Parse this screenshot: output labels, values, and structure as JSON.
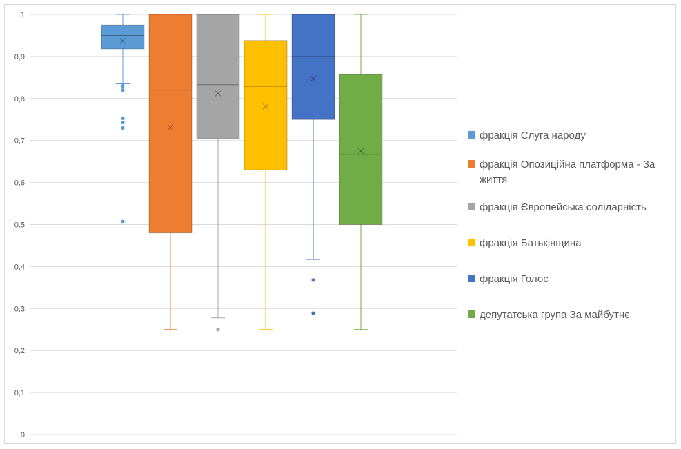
{
  "chart_data": {
    "type": "boxplot",
    "title": "",
    "xlabel": "",
    "ylabel": "",
    "ylim": [
      0,
      1
    ],
    "y_ticks": [
      "0",
      "0,1",
      "0,2",
      "0,3",
      "0,4",
      "0,5",
      "0,6",
      "0,7",
      "0,8",
      "0,9",
      "1"
    ],
    "grid": true,
    "legend_position": "right",
    "series": [
      {
        "name": "фракція Слуга народу",
        "color": "#5b9bd5",
        "q1": 0.918,
        "median": 0.95,
        "q3": 0.975,
        "whisker_low": 0.835,
        "whisker_high": 1.0,
        "mean": 0.937,
        "outliers": [
          0.83,
          0.82,
          0.753,
          0.743,
          0.73,
          0.507
        ]
      },
      {
        "name": "фракція Опозиційна платформа - За життя",
        "color": "#ed7d31",
        "q1": 0.48,
        "median": 0.82,
        "q3": 1.0,
        "whisker_low": 0.25,
        "whisker_high": 1.0,
        "mean": 0.731,
        "outliers": []
      },
      {
        "name": "фракція Європейська солідарність",
        "color": "#a5a5a5",
        "q1": 0.704,
        "median": 0.833,
        "q3": 1.0,
        "whisker_low": 0.278,
        "whisker_high": 1.0,
        "mean": 0.812,
        "outliers": [
          0.25
        ]
      },
      {
        "name": "фракція Батьківщина",
        "color": "#ffc000",
        "q1": 0.63,
        "median": 0.829,
        "q3": 0.938,
        "whisker_low": 0.25,
        "whisker_high": 1.0,
        "mean": 0.781,
        "outliers": []
      },
      {
        "name": "фракція Голос",
        "color": "#4472c4",
        "q1": 0.75,
        "median": 0.9,
        "q3": 1.0,
        "whisker_low": 0.417,
        "whisker_high": 1.0,
        "mean": 0.847,
        "outliers": [
          0.368,
          0.289
        ]
      },
      {
        "name": "депутатська група За майбутнє",
        "color": "#70ad47",
        "q1": 0.5,
        "median": 0.667,
        "q3": 0.857,
        "whisker_low": 0.25,
        "whisker_high": 1.0,
        "mean": 0.675,
        "outliers": []
      }
    ]
  }
}
